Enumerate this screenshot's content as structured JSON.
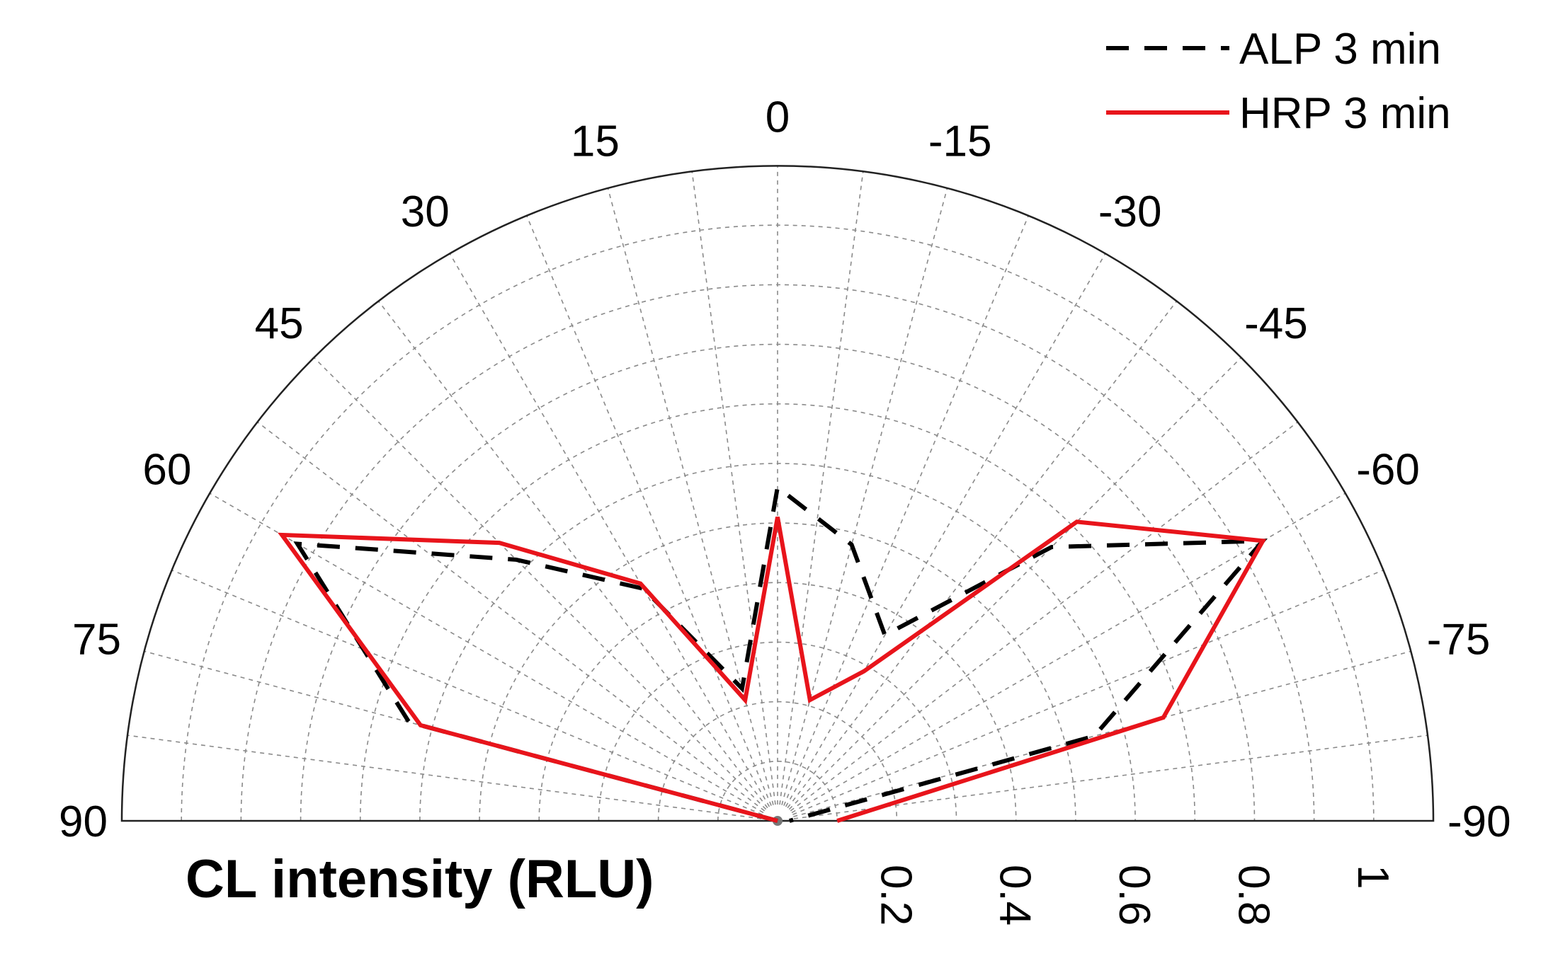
{
  "chart_data": {
    "type": "polar-line",
    "title": "",
    "xlabel": "CL intensity (RLU)",
    "angle_range": [
      -90,
      90
    ],
    "radius_range": [
      0,
      1.1
    ],
    "angle_ticks": [
      90,
      75,
      60,
      45,
      30,
      15,
      0,
      -15,
      -30,
      -45,
      -60,
      -75,
      -90
    ],
    "radial_ticks": [
      "0.2",
      "0.4",
      "0.6",
      "0.8",
      "1"
    ],
    "radial_tick_values": [
      0.2,
      0.4,
      0.6,
      0.8,
      1.0
    ],
    "grid": true,
    "legend_position": "top-right",
    "colors": {
      "ALP": "#000000",
      "HRP": "#e8141b",
      "grid": "#8a8a8a"
    },
    "series": [
      {
        "name": "ALP 3 min",
        "style": "dashed",
        "angles": [
          90,
          75,
          60,
          45,
          30,
          15,
          0,
          -15,
          -30,
          -45,
          -60,
          -75,
          -90
        ],
        "values": [
          0.0,
          0.64,
          0.93,
          0.62,
          0.45,
          0.23,
          0.56,
          0.48,
          0.36,
          0.65,
          0.94,
          0.55,
          0.02
        ]
      },
      {
        "name": "HRP 3 min",
        "style": "solid",
        "angles": [
          90,
          75,
          60,
          45,
          30,
          15,
          0,
          -15,
          -30,
          -45,
          -60,
          -75,
          -90
        ],
        "values": [
          0.0,
          0.62,
          0.96,
          0.66,
          0.46,
          0.21,
          0.51,
          0.21,
          0.29,
          0.71,
          0.94,
          0.67,
          0.1
        ]
      }
    ]
  }
}
